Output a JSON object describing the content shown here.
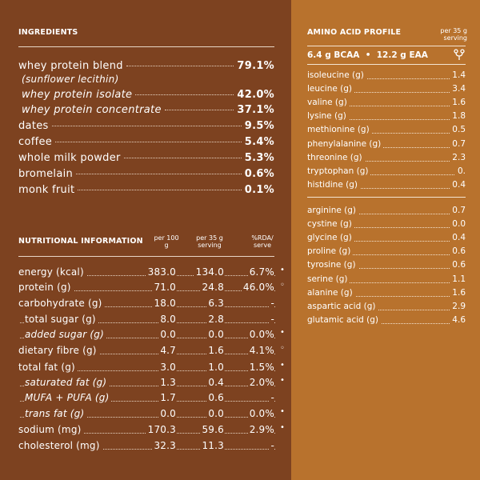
{
  "ingredients": {
    "heading": "INGREDIENTS",
    "items": [
      {
        "label": "whey protein blend",
        "value": "79.1%"
      },
      {
        "label": "whey protein isolate",
        "value": "42.0%"
      },
      {
        "label": "whey protein concentrate",
        "value": "37.1%"
      },
      {
        "label": "dates",
        "value": "9.5%"
      },
      {
        "label": "coffee",
        "value": "5.4%"
      },
      {
        "label": "whole milk powder",
        "value": "5.3%"
      },
      {
        "label": "bromelain",
        "value": "0.6%"
      },
      {
        "label": "monk fruit",
        "value": "0.1%"
      }
    ],
    "sub_note": "(sunflower lecithin)"
  },
  "nutrition": {
    "heading": "NUTRITIONAL INFORMATION",
    "col_per100": "per 100 g",
    "col_serving": "per 35 g serving",
    "col_rda": "%RDA/ serve",
    "rows": [
      {
        "label": "energy (kcal)",
        "per100": "383.0",
        "serving": "134.0",
        "rda": "6.7%",
        "mark": "•"
      },
      {
        "label": "protein (g)",
        "per100": "71.0",
        "serving": "24.8",
        "rda": "46.0%",
        "mark": "◦"
      },
      {
        "label": "carbohydrate (g)",
        "per100": "18.0",
        "serving": "6.3",
        "rda": "-",
        "mark": ""
      },
      {
        "label": "total sugar (g)",
        "per100": "8.0",
        "serving": "2.8",
        "rda": "-",
        "mark": ""
      },
      {
        "label": "added sugar (g)",
        "per100": "0.0",
        "serving": "0.0",
        "rda": "0.0%",
        "mark": "•"
      },
      {
        "label": "dietary fibre (g)",
        "per100": "4.7",
        "serving": "1.6",
        "rda": "4.1%",
        "mark": "◦"
      },
      {
        "label": "total fat (g)",
        "per100": "3.0",
        "serving": "1.0",
        "rda": "1.5%",
        "mark": "•"
      },
      {
        "label": "saturated fat (g)",
        "per100": "1.3",
        "serving": "0.4",
        "rda": "2.0%",
        "mark": "•"
      },
      {
        "label": "MUFA + PUFA (g)",
        "per100": "1.7",
        "serving": "0.6",
        "rda": "-",
        "mark": ""
      },
      {
        "label": "trans fat (g)",
        "per100": "0.0",
        "serving": "0.0",
        "rda": "0.0%",
        "mark": "•"
      },
      {
        "label": "sodium (mg)",
        "per100": "170.3",
        "serving": "59.6",
        "rda": "2.9%",
        "mark": "•"
      },
      {
        "label": "cholesterol (mg)",
        "per100": "32.3",
        "serving": "11.3",
        "rda": "-",
        "mark": ""
      }
    ]
  },
  "amino": {
    "heading": "AMINO ACID PROFILE",
    "col_serving": "per 35 g serving",
    "summary": "6.4 g BCAA  •  12.2 g EAA",
    "icon_name": "fork-branch-icon",
    "group1": [
      {
        "label": "isoleucine (g)",
        "value": "1.4"
      },
      {
        "label": "leucine (g)",
        "value": "3.4"
      },
      {
        "label": "valine (g)",
        "value": "1.6"
      },
      {
        "label": "lysine (g)",
        "value": "1.8"
      },
      {
        "label": "methionine (g)",
        "value": "0.5"
      },
      {
        "label": "phenylalanine (g)",
        "value": "0.7"
      },
      {
        "label": "threonine (g)",
        "value": "2.3"
      },
      {
        "label": "tryptophan (g)",
        "value": "0."
      },
      {
        "label": "histidine (g)",
        "value": "0.4"
      }
    ],
    "group2": [
      {
        "label": "arginine (g)",
        "value": "0.7"
      },
      {
        "label": "cystine (g)",
        "value": "0.0"
      },
      {
        "label": "glycine (g)",
        "value": "0.4"
      },
      {
        "label": "proline (g)",
        "value": "0.6"
      },
      {
        "label": "tyrosine (g)",
        "value": "0.6"
      },
      {
        "label": "serine (g)",
        "value": "1.1"
      },
      {
        "label": "alanine (g)",
        "value": "1.6"
      },
      {
        "label": "aspartic acid (g)",
        "value": "2.9"
      },
      {
        "label": "glutamic acid (g)",
        "value": "4.6"
      }
    ]
  }
}
